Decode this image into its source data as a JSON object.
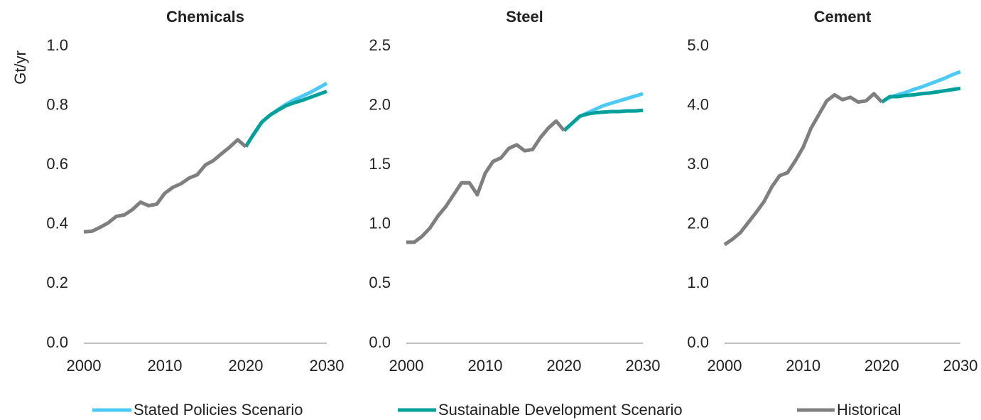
{
  "chart_data": [
    {
      "type": "line",
      "title": "Chemicals",
      "ylabel": "Gt/yr",
      "x": [
        2000,
        2001,
        2002,
        2003,
        2004,
        2005,
        2006,
        2007,
        2008,
        2009,
        2010,
        2011,
        2012,
        2013,
        2014,
        2015,
        2016,
        2017,
        2018,
        2019,
        2020,
        2021,
        2022,
        2023,
        2024,
        2025,
        2026,
        2027,
        2028,
        2029,
        2030
      ],
      "xlim": [
        2000,
        2030
      ],
      "xticks": [
        2000,
        2010,
        2020,
        2030
      ],
      "ylim": [
        0,
        1
      ],
      "yticks": [
        {
          "value": 0,
          "label": "0.0"
        },
        0.2,
        0.4,
        0.6,
        0.8,
        {
          "value": 1,
          "label": "1.0"
        }
      ],
      "series": [
        {
          "name": "Stated Policies Scenario",
          "color": "#4dc9f6",
          "values": [
            null,
            null,
            null,
            null,
            null,
            null,
            null,
            null,
            null,
            null,
            null,
            null,
            null,
            null,
            null,
            null,
            null,
            null,
            null,
            null,
            0.662,
            0.705,
            0.745,
            0.768,
            0.787,
            0.805,
            0.82,
            0.832,
            0.845,
            0.86,
            0.875
          ]
        },
        {
          "name": "Sustainable Development Scenario",
          "color": "#00a19a",
          "values": [
            null,
            null,
            null,
            null,
            null,
            null,
            null,
            null,
            null,
            null,
            null,
            null,
            null,
            null,
            null,
            null,
            null,
            null,
            null,
            null,
            0.662,
            0.705,
            0.745,
            0.768,
            0.785,
            0.8,
            0.81,
            0.818,
            0.828,
            0.838,
            0.848
          ]
        },
        {
          "name": "Historical",
          "color": "#7f7f7f",
          "values": [
            0.375,
            0.377,
            0.39,
            0.405,
            0.427,
            0.432,
            0.45,
            0.475,
            0.463,
            0.468,
            0.505,
            0.525,
            0.537,
            0.556,
            0.567,
            0.6,
            0.615,
            0.638,
            0.66,
            0.685,
            0.662,
            null,
            null,
            null,
            null,
            null,
            null,
            null,
            null,
            null,
            null
          ]
        }
      ]
    },
    {
      "type": "line",
      "title": "Steel",
      "x": [
        2000,
        2001,
        2002,
        2003,
        2004,
        2005,
        2006,
        2007,
        2008,
        2009,
        2010,
        2011,
        2012,
        2013,
        2014,
        2015,
        2016,
        2017,
        2018,
        2019,
        2020,
        2021,
        2022,
        2023,
        2024,
        2025,
        2026,
        2027,
        2028,
        2029,
        2030
      ],
      "xlim": [
        2000,
        2030
      ],
      "xticks": [
        2000,
        2010,
        2020,
        2030
      ],
      "ylim": [
        0,
        2.5
      ],
      "yticks": [
        {
          "value": 0,
          "label": "0.0"
        },
        0.5,
        {
          "value": 1,
          "label": "1.0"
        },
        1.5,
        {
          "value": 2,
          "label": "2.0"
        },
        2.5
      ],
      "series": [
        {
          "name": "Stated Policies Scenario",
          "color": "#4dc9f6",
          "values": [
            null,
            null,
            null,
            null,
            null,
            null,
            null,
            null,
            null,
            null,
            null,
            null,
            null,
            null,
            null,
            null,
            null,
            null,
            null,
            null,
            1.79,
            1.85,
            1.91,
            1.94,
            1.97,
            2.0,
            2.02,
            2.04,
            2.06,
            2.08,
            2.1
          ]
        },
        {
          "name": "Sustainable Development Scenario",
          "color": "#00a19a",
          "values": [
            null,
            null,
            null,
            null,
            null,
            null,
            null,
            null,
            null,
            null,
            null,
            null,
            null,
            null,
            null,
            null,
            null,
            null,
            null,
            null,
            1.79,
            1.85,
            1.91,
            1.93,
            1.94,
            1.945,
            1.95,
            1.95,
            1.955,
            1.955,
            1.96
          ]
        },
        {
          "name": "Historical",
          "color": "#7f7f7f",
          "values": [
            0.85,
            0.85,
            0.9,
            0.97,
            1.07,
            1.15,
            1.25,
            1.35,
            1.35,
            1.25,
            1.43,
            1.53,
            1.56,
            1.64,
            1.67,
            1.62,
            1.63,
            1.73,
            1.81,
            1.87,
            1.79,
            null,
            null,
            null,
            null,
            null,
            null,
            null,
            null,
            null,
            null
          ]
        }
      ]
    },
    {
      "type": "line",
      "title": "Cement",
      "x": [
        2000,
        2001,
        2002,
        2003,
        2004,
        2005,
        2006,
        2007,
        2008,
        2009,
        2010,
        2011,
        2012,
        2013,
        2014,
        2015,
        2016,
        2017,
        2018,
        2019,
        2020,
        2021,
        2022,
        2023,
        2024,
        2025,
        2026,
        2027,
        2028,
        2029,
        2030
      ],
      "xlim": [
        2000,
        2030
      ],
      "xticks": [
        2000,
        2010,
        2020,
        2030
      ],
      "ylim": [
        0,
        5
      ],
      "yticks": [
        {
          "value": 0,
          "label": "0.0"
        },
        {
          "value": 1,
          "label": "1.0"
        },
        {
          "value": 2,
          "label": "2.0"
        },
        {
          "value": 3,
          "label": "3.0"
        },
        {
          "value": 4,
          "label": "4.0"
        },
        {
          "value": 5,
          "label": "5.0"
        }
      ],
      "series": [
        {
          "name": "Stated Policies Scenario",
          "color": "#4dc9f6",
          "values": [
            null,
            null,
            null,
            null,
            null,
            null,
            null,
            null,
            null,
            null,
            null,
            null,
            null,
            null,
            null,
            null,
            null,
            null,
            null,
            null,
            4.06,
            4.14,
            4.18,
            4.22,
            4.27,
            4.31,
            4.36,
            4.41,
            4.46,
            4.52,
            4.57
          ]
        },
        {
          "name": "Sustainable Development Scenario",
          "color": "#00a19a",
          "values": [
            null,
            null,
            null,
            null,
            null,
            null,
            null,
            null,
            null,
            null,
            null,
            null,
            null,
            null,
            null,
            null,
            null,
            null,
            null,
            null,
            4.06,
            4.15,
            4.15,
            4.17,
            4.18,
            4.2,
            4.21,
            4.23,
            4.25,
            4.27,
            4.29
          ]
        },
        {
          "name": "Historical",
          "color": "#7f7f7f",
          "values": [
            1.66,
            1.75,
            1.86,
            2.03,
            2.2,
            2.38,
            2.63,
            2.82,
            2.87,
            3.07,
            3.3,
            3.62,
            3.85,
            4.08,
            4.18,
            4.1,
            4.14,
            4.06,
            4.08,
            4.2,
            4.06,
            null,
            null,
            null,
            null,
            null,
            null,
            null,
            null,
            null,
            null
          ]
        }
      ]
    }
  ]
}
